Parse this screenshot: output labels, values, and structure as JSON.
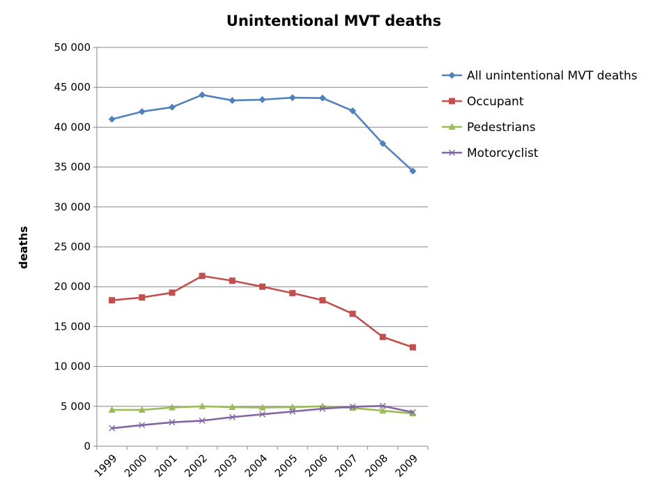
{
  "chart_data": {
    "type": "line",
    "title": "Unintentional MVT deaths",
    "xlabel": "",
    "ylabel": "deaths",
    "categories": [
      "1999",
      "2000",
      "2001",
      "2002",
      "2003",
      "2004",
      "2005",
      "2006",
      "2007",
      "2008",
      "2009"
    ],
    "ylim": [
      0,
      50000
    ],
    "yticks": [
      0,
      5000,
      10000,
      15000,
      20000,
      25000,
      30000,
      35000,
      40000,
      45000,
      50000
    ],
    "ytick_labels": [
      "0",
      "5 000",
      "10 000",
      "15 000",
      "20 000",
      "25 000",
      "30 000",
      "35 000",
      "40 000",
      "45 000",
      "50 000"
    ],
    "grid": "horizontal",
    "legend_position": "right",
    "series": [
      {
        "name": "All unintentional MVT deaths",
        "color": "#4F81BD",
        "marker": "diamond",
        "values": [
          41000,
          41950,
          42500,
          44050,
          43350,
          43450,
          43700,
          43650,
          42050,
          37950,
          34500
        ]
      },
      {
        "name": "Occupant",
        "color": "#C0504D",
        "marker": "square",
        "values": [
          18300,
          18650,
          19250,
          21350,
          20750,
          20000,
          19200,
          18300,
          16600,
          13700,
          12400
        ]
      },
      {
        "name": "Pedestrians",
        "color": "#9BBB59",
        "marker": "triangle",
        "values": [
          4550,
          4550,
          4850,
          5000,
          4900,
          4850,
          4900,
          5000,
          4800,
          4450,
          4100
        ]
      },
      {
        "name": "Motorcyclist",
        "color": "#8064A2",
        "marker": "x",
        "values": [
          2250,
          2650,
          3000,
          3200,
          3650,
          4000,
          4350,
          4700,
          4950,
          5050,
          4250
        ]
      }
    ]
  }
}
